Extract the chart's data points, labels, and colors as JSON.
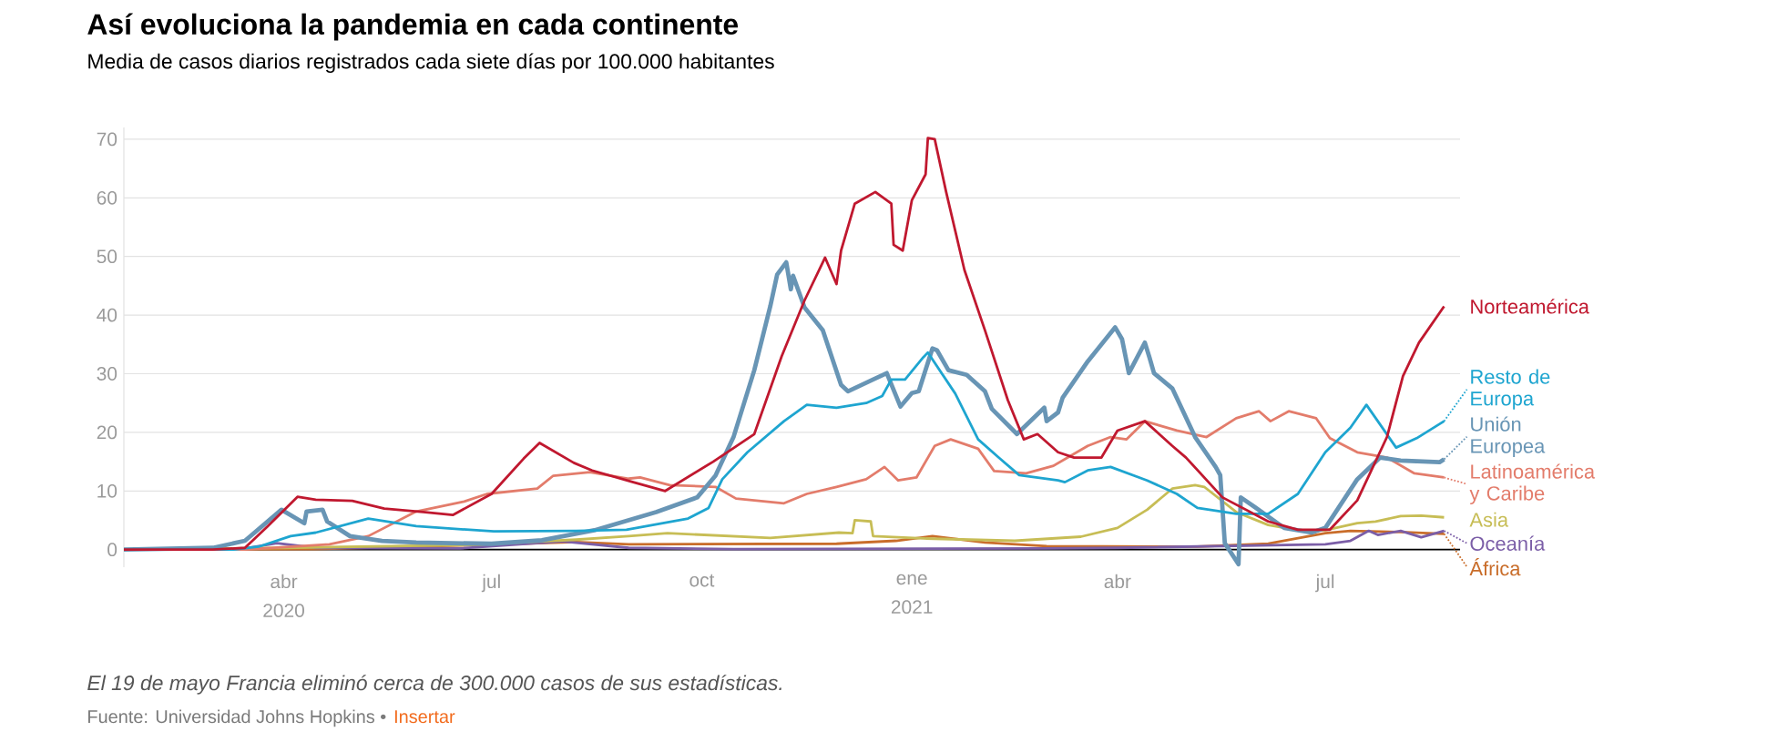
{
  "chart_data": {
    "type": "line",
    "title": "Así evoluciona la pandemia en cada continente",
    "subtitle": "Media de casos diarios registrados cada siete días por 100.000 habitantes",
    "annotations": [
      "El 19 de mayo Francia eliminó cerca de 300.000 casos de sus estadísticas.",
      "Fuente: Universidad Johns Hopkins •",
      "Insertar"
    ],
    "xlim": [
      "2020-01-22",
      "2021-08-29"
    ],
    "ylim": [
      -3,
      72
    ],
    "xticks": [
      {
        "value": "2020-04-01",
        "label": "abr 2020"
      },
      {
        "value": "2020-07-01",
        "label": "jul"
      },
      {
        "value": "2020-10-01",
        "label": "oct"
      },
      {
        "value": "2021-01-01",
        "label": "ene 2021"
      },
      {
        "value": "2021-04-01",
        "label": "abr"
      },
      {
        "value": "2021-07-01",
        "label": "jul"
      }
    ],
    "yticks": [
      0,
      10,
      20,
      30,
      40,
      50,
      60,
      70
    ],
    "grid": "y",
    "legend": "right",
    "marker": "none",
    "line_style": "solid",
    "series": [
      {
        "name": "Norteamérica",
        "color": "#c0182f",
        "x": [
          "2020-01-22",
          "2020-03-01",
          "2020-03-15",
          "2020-03-25",
          "2020-04-07",
          "2020-04-15",
          "2020-05-01",
          "2020-05-15",
          "2020-06-01",
          "2020-06-14",
          "2020-07-01",
          "2020-07-15",
          "2020-07-22",
          "2020-08-06",
          "2020-08-14",
          "2020-09-01",
          "2020-09-15",
          "2020-10-06",
          "2020-10-24",
          "2020-11-05",
          "2020-11-15",
          "2020-11-24",
          "2020-11-29",
          "2020-12-01",
          "2020-12-07",
          "2020-12-16",
          "2020-12-23",
          "2020-12-24",
          "2020-12-28",
          "2021-01-01",
          "2021-01-07",
          "2021-01-08",
          "2021-01-11",
          "2021-01-16",
          "2021-01-24",
          "2021-02-02",
          "2021-02-12",
          "2021-02-19",
          "2021-02-25",
          "2021-03-06",
          "2021-03-13",
          "2021-03-25",
          "2021-04-01",
          "2021-04-13",
          "2021-04-25",
          "2021-05-01",
          "2021-05-17",
          "2021-06-06",
          "2021-06-19",
          "2021-07-03",
          "2021-07-15",
          "2021-07-28",
          "2021-08-04",
          "2021-08-11",
          "2021-08-22"
        ],
        "values": [
          0,
          0,
          0.3,
          4,
          9,
          8.5,
          8.3,
          7,
          6.4,
          5.9,
          9.5,
          15.5,
          18.2,
          14.8,
          13.5,
          11.5,
          10,
          15,
          19.7,
          33,
          42.5,
          49.8,
          45.3,
          51,
          59,
          61,
          59,
          52,
          51,
          59.6,
          64,
          70.2,
          70,
          61,
          47.7,
          37.4,
          25.5,
          18.8,
          19.7,
          16.6,
          15.7,
          15.7,
          20.3,
          21.9,
          17.7,
          15.7,
          8.9,
          4.8,
          3.4,
          3.4,
          8.4,
          19.2,
          29.6,
          35.3,
          41.5
        ]
      },
      {
        "name": "Resto de Europa",
        "color": "#1ea5d0",
        "x": [
          "2020-01-22",
          "2020-03-10",
          "2020-03-21",
          "2020-04-04",
          "2020-04-15",
          "2020-05-08",
          "2020-05-29",
          "2020-07-02",
          "2020-08-07",
          "2020-08-29",
          "2020-09-25",
          "2020-10-04",
          "2020-10-10",
          "2020-10-21",
          "2020-11-06",
          "2020-11-16",
          "2020-11-29",
          "2020-12-12",
          "2020-12-19",
          "2020-12-23",
          "2020-12-29",
          "2021-01-06",
          "2021-01-08",
          "2021-01-20",
          "2021-01-30",
          "2021-02-08",
          "2021-02-17",
          "2021-03-06",
          "2021-03-09",
          "2021-03-19",
          "2021-03-29",
          "2021-04-14",
          "2021-04-27",
          "2021-05-06",
          "2021-05-23",
          "2021-06-06",
          "2021-06-19",
          "2021-07-01",
          "2021-07-12",
          "2021-07-19",
          "2021-08-01",
          "2021-08-10",
          "2021-08-22"
        ],
        "values": [
          0,
          0,
          0.5,
          2.3,
          2.9,
          5.3,
          4,
          3.1,
          3.2,
          3.4,
          5.3,
          7.1,
          12,
          16.6,
          21.9,
          24.7,
          24.2,
          25,
          26.2,
          29,
          29,
          32.8,
          33.6,
          26.6,
          18.8,
          15.7,
          12.7,
          11.8,
          11.5,
          13.5,
          14.1,
          11.8,
          9.5,
          7.1,
          6.1,
          6.1,
          9.5,
          16.6,
          20.8,
          24.7,
          17.4,
          19,
          21.9
        ]
      },
      {
        "name": "Unión Europea",
        "color": "#6895b5",
        "x": [
          "2020-01-22",
          "2020-03-01",
          "2020-03-15",
          "2020-03-31",
          "2020-04-10",
          "2020-04-11",
          "2020-04-18",
          "2020-04-20",
          "2020-04-30",
          "2020-05-14",
          "2020-05-29",
          "2020-07-01",
          "2020-07-23",
          "2020-08-15",
          "2020-09-11",
          "2020-09-29",
          "2020-10-07",
          "2020-10-15",
          "2020-10-24",
          "2020-10-31",
          "2020-11-03",
          "2020-11-07",
          "2020-11-09",
          "2020-11-10",
          "2020-11-15",
          "2020-11-23",
          "2020-12-01",
          "2020-12-04",
          "2020-12-15",
          "2020-12-21",
          "2020-12-27",
          "2021-01-01",
          "2021-01-04",
          "2021-01-10",
          "2021-01-12",
          "2021-01-17",
          "2021-01-25",
          "2021-02-02",
          "2021-02-05",
          "2021-02-16",
          "2021-02-28",
          "2021-03-01",
          "2021-03-06",
          "2021-03-08",
          "2021-03-19",
          "2021-03-31",
          "2021-04-03",
          "2021-04-06",
          "2021-04-13",
          "2021-04-15",
          "2021-04-17",
          "2021-04-25",
          "2021-05-05",
          "2021-05-14",
          "2021-05-16",
          "2021-05-18",
          "2021-05-24",
          "2021-05-25",
          "2021-05-31",
          "2021-06-13",
          "2021-06-25",
          "2021-07-01",
          "2021-07-15",
          "2021-07-25",
          "2021-08-03",
          "2021-08-20",
          "2021-08-22"
        ],
        "values": [
          0,
          0.3,
          1.5,
          6.8,
          4.5,
          6.5,
          6.8,
          4.8,
          2.3,
          1.5,
          1.2,
          1,
          1.6,
          3.3,
          6.4,
          8.9,
          12.6,
          19.3,
          30.6,
          41.5,
          46.9,
          49,
          44.4,
          46.7,
          41.3,
          37.4,
          28.1,
          27,
          29,
          30.1,
          24.4,
          26.7,
          27,
          34.3,
          34,
          30.6,
          29.8,
          27,
          24,
          19.7,
          24.2,
          21.9,
          23.4,
          25.9,
          32.1,
          37.9,
          35.9,
          30.1,
          35.3,
          32.8,
          30.1,
          27.5,
          19.2,
          14.1,
          12.7,
          1.1,
          -2.5,
          8.9,
          7.3,
          3.7,
          2.9,
          3.7,
          12,
          15.7,
          15.2,
          14.9,
          15.4
        ]
      },
      {
        "name": "Latinoamérica y Caribe",
        "color": "#e37c6b",
        "x": [
          "2020-01-22",
          "2020-03-15",
          "2020-04-21",
          "2020-05-08",
          "2020-05-29",
          "2020-06-19",
          "2020-06-29",
          "2020-07-21",
          "2020-07-28",
          "2020-08-13",
          "2020-08-30",
          "2020-09-04",
          "2020-09-17",
          "2020-10-07",
          "2020-10-16",
          "2020-11-06",
          "2020-11-16",
          "2020-11-29",
          "2020-12-12",
          "2020-12-20",
          "2020-12-26",
          "2021-01-03",
          "2021-01-11",
          "2021-01-18",
          "2021-01-30",
          "2021-02-06",
          "2021-02-20",
          "2021-03-04",
          "2021-03-19",
          "2021-03-29",
          "2021-04-05",
          "2021-04-13",
          "2021-04-27",
          "2021-05-10",
          "2021-05-23",
          "2021-06-02",
          "2021-06-07",
          "2021-06-15",
          "2021-06-27",
          "2021-07-03",
          "2021-07-15",
          "2021-07-28",
          "2021-08-09",
          "2021-08-22"
        ],
        "values": [
          0,
          0,
          0.9,
          2.3,
          6.5,
          8.2,
          9.5,
          10.4,
          12.6,
          13.2,
          12.1,
          12.3,
          11,
          10.7,
          8.7,
          7.9,
          9.5,
          10.7,
          12,
          14.1,
          11.8,
          12.3,
          17.7,
          18.8,
          17.2,
          13.4,
          13,
          14.3,
          17.7,
          19.2,
          18.8,
          21.9,
          20.3,
          19.2,
          22.4,
          23.6,
          21.9,
          23.6,
          22.4,
          19,
          16.6,
          15.7,
          13,
          12.3
        ]
      },
      {
        "name": "Asia",
        "color": "#c7bd55",
        "x": [
          "2020-01-22",
          "2020-04-01",
          "2020-06-20",
          "2020-08-07",
          "2020-08-30",
          "2020-09-16",
          "2020-10-31",
          "2020-11-30",
          "2020-12-06",
          "2020-12-07",
          "2020-12-14",
          "2020-12-15",
          "2021-01-06",
          "2021-02-15",
          "2021-03-16",
          "2021-04-01",
          "2021-04-14",
          "2021-04-25",
          "2021-05-05",
          "2021-05-09",
          "2021-05-23",
          "2021-06-06",
          "2021-06-19",
          "2021-07-01",
          "2021-07-15",
          "2021-07-23",
          "2021-08-03",
          "2021-08-12",
          "2021-08-22"
        ],
        "values": [
          0,
          0.3,
          0.8,
          1.7,
          2.3,
          2.8,
          2,
          2.9,
          2.8,
          5,
          4.8,
          2.3,
          1.9,
          1.5,
          2.2,
          3.7,
          6.8,
          10.4,
          11,
          10.7,
          6.4,
          4.2,
          3.3,
          3.3,
          4.5,
          4.8,
          5.7,
          5.8,
          5.5
        ]
      },
      {
        "name": "Oceanía",
        "color": "#7b5ea7",
        "x": [
          "2020-01-22",
          "2020-03-15",
          "2020-03-29",
          "2020-04-15",
          "2020-06-17",
          "2020-08-01",
          "2020-08-30",
          "2020-10-15",
          "2021-03-01",
          "2021-04-01",
          "2021-07-01",
          "2021-07-12",
          "2021-07-20",
          "2021-07-24",
          "2021-08-03",
          "2021-08-12",
          "2021-08-22"
        ],
        "values": [
          0,
          0.2,
          1.1,
          0.3,
          0.2,
          1.4,
          0.3,
          0.1,
          0.2,
          0.3,
          0.9,
          1.5,
          3.2,
          2.5,
          3.2,
          2.1,
          3.2
        ]
      },
      {
        "name": "África",
        "color": "#c96d2a",
        "x": [
          "2020-01-22",
          "2020-04-15",
          "2020-06-17",
          "2020-08-07",
          "2020-08-30",
          "2020-11-29",
          "2020-12-25",
          "2021-01-10",
          "2021-02-02",
          "2021-03-01",
          "2021-05-06",
          "2021-06-06",
          "2021-07-01",
          "2021-07-12",
          "2021-08-03",
          "2021-08-22"
        ],
        "values": [
          0,
          0.1,
          0.7,
          1.3,
          0.9,
          1,
          1.5,
          2.3,
          1.2,
          0.6,
          0.5,
          1,
          2.8,
          3.2,
          3,
          2.7
        ]
      }
    ]
  }
}
